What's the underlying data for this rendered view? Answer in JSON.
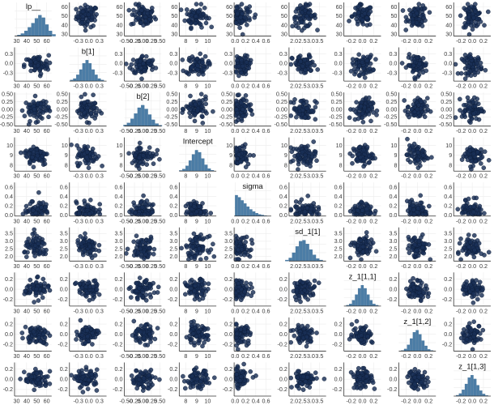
{
  "chart_data": {
    "type": "scatter",
    "layout": "pairs-matrix",
    "colors": {
      "point_fill": "#1a3057",
      "point_stroke": "#0b1a33",
      "bar_fill": "#4c7da6",
      "grid": "#ececec",
      "axis": "#333333"
    },
    "diagonal_type": "bar",
    "offdiagonal_type": "scatter",
    "grid": true,
    "variables": [
      {
        "name": "lp__",
        "ticks": [
          "30",
          "40",
          "50",
          "60"
        ],
        "range": [
          28,
          65
        ],
        "center": 50,
        "spread": 6,
        "hist": [
          0.05,
          0.12,
          0.25,
          0.42,
          0.62,
          0.85,
          1.0,
          0.88,
          0.55,
          0.25,
          0.08
        ]
      },
      {
        "name": "b[1]",
        "ticks": [
          "-0.3",
          "0.0",
          "0.3"
        ],
        "range": [
          -0.55,
          0.5
        ],
        "center": -0.05,
        "spread": 0.15,
        "hist": [
          0.05,
          0.12,
          0.3,
          0.55,
          0.85,
          1.0,
          0.85,
          0.55,
          0.3,
          0.12,
          0.05
        ]
      },
      {
        "name": "b[2]",
        "ticks": [
          "-0.50",
          "-0.25",
          "0.00",
          "0.25",
          "0.50"
        ],
        "range": [
          -0.55,
          0.55
        ],
        "center": 0.0,
        "spread": 0.18,
        "hist": [
          0.05,
          0.15,
          0.35,
          0.6,
          0.88,
          1.0,
          0.82,
          0.55,
          0.3,
          0.12,
          0.04
        ]
      },
      {
        "name": "Intercept",
        "ticks": [
          "8",
          "9",
          "10"
        ],
        "range": [
          7.4,
          10.8
        ],
        "center": 9.0,
        "spread": 0.5,
        "hist": [
          0.03,
          0.1,
          0.25,
          0.5,
          0.8,
          1.0,
          0.9,
          0.6,
          0.3,
          0.12,
          0.04
        ]
      },
      {
        "name": "sigma",
        "ticks": [
          "0.0",
          "0.2",
          "0.4",
          "0.6"
        ],
        "range": [
          -0.02,
          0.7
        ],
        "center": 0.2,
        "spread": 0.12,
        "hist": [
          1.0,
          0.9,
          0.75,
          0.6,
          0.45,
          0.32,
          0.22,
          0.14,
          0.08,
          0.05,
          0.02
        ]
      },
      {
        "name": "sd_1[1]",
        "ticks": [
          "2.0",
          "2.5",
          "3.0",
          "3.5"
        ],
        "range": [
          1.7,
          3.9
        ],
        "center": 2.6,
        "spread": 0.35,
        "hist": [
          0.05,
          0.15,
          0.4,
          0.7,
          0.95,
          1.0,
          0.82,
          0.55,
          0.3,
          0.12,
          0.05
        ]
      },
      {
        "name": "z_1[1,1]",
        "ticks": [
          "-0.2",
          "0.0",
          "0.2"
        ],
        "range": [
          -0.33,
          0.33
        ],
        "center": 0.0,
        "spread": 0.09,
        "hist": [
          0.04,
          0.1,
          0.28,
          0.55,
          0.85,
          1.0,
          0.85,
          0.55,
          0.28,
          0.1,
          0.04
        ]
      },
      {
        "name": "z_1[1,2]",
        "ticks": [
          "-0.2",
          "0.0",
          "0.2"
        ],
        "range": [
          -0.33,
          0.33
        ],
        "center": 0.0,
        "spread": 0.09,
        "hist": [
          0.03,
          0.1,
          0.3,
          0.6,
          0.9,
          1.0,
          0.8,
          0.5,
          0.25,
          0.08,
          0.03
        ]
      },
      {
        "name": "z_1[1,3]",
        "ticks": [
          "-0.2",
          "0.0",
          "0.2"
        ],
        "range": [
          -0.33,
          0.33
        ],
        "center": 0.0,
        "spread": 0.09,
        "hist": [
          0.04,
          0.12,
          0.3,
          0.58,
          0.88,
          1.0,
          0.82,
          0.52,
          0.26,
          0.1,
          0.03
        ]
      }
    ],
    "points_per_panel": 70
  }
}
